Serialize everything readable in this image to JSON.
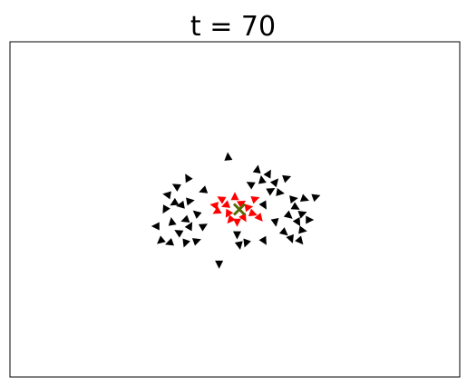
{
  "chart_data": {
    "type": "scatter",
    "title": "t = 70",
    "xlabel": "",
    "ylabel": "",
    "xlim": [
      -10,
      10
    ],
    "ylim": [
      -8,
      8
    ],
    "grid": false,
    "axis_ticks": false,
    "colors": {
      "agents": "#000000",
      "leaders": "#ff0000",
      "center_marker": "#556b00",
      "frame": "#000000",
      "background": "#ffffff"
    },
    "marker": "triangle-arrow",
    "series": [
      {
        "color": "#000000",
        "points": [
          {
            "x": -0.3,
            "y": 2.5,
            "heading": 95
          },
          {
            "x": -2.1,
            "y": 1.5,
            "heading": 120
          },
          {
            "x": -2.6,
            "y": 1.1,
            "heading": 150
          },
          {
            "x": -1.4,
            "y": 0.9,
            "heading": 200
          },
          {
            "x": -3.0,
            "y": 0.7,
            "heading": 170
          },
          {
            "x": -2.7,
            "y": 0.3,
            "heading": 210
          },
          {
            "x": -2.4,
            "y": 0.2,
            "heading": 190
          },
          {
            "x": -2.0,
            "y": 0.4,
            "heading": 10
          },
          {
            "x": -3.1,
            "y": 0.0,
            "heading": 240
          },
          {
            "x": -1.7,
            "y": -0.2,
            "heading": 140
          },
          {
            "x": -2.2,
            "y": -0.5,
            "heading": 200
          },
          {
            "x": -3.5,
            "y": -0.8,
            "heading": 180
          },
          {
            "x": -2.8,
            "y": -0.6,
            "heading": 100
          },
          {
            "x": -2.0,
            "y": -0.8,
            "heading": 60
          },
          {
            "x": -1.4,
            "y": -0.8,
            "heading": 30
          },
          {
            "x": -2.5,
            "y": -1.1,
            "heading": 150
          },
          {
            "x": -3.3,
            "y": -1.5,
            "heading": 220
          },
          {
            "x": -2.9,
            "y": -1.6,
            "heading": 200
          },
          {
            "x": -2.2,
            "y": -1.6,
            "heading": 250
          },
          {
            "x": -1.7,
            "y": -1.5,
            "heading": 20
          },
          {
            "x": -0.7,
            "y": -2.6,
            "heading": 270
          },
          {
            "x": 1.0,
            "y": 1.9,
            "heading": 80
          },
          {
            "x": 1.5,
            "y": 1.7,
            "heading": 60
          },
          {
            "x": 1.2,
            "y": 1.4,
            "heading": 100
          },
          {
            "x": 0.7,
            "y": 1.2,
            "heading": 150
          },
          {
            "x": 1.8,
            "y": 1.3,
            "heading": 50
          },
          {
            "x": 2.3,
            "y": 1.5,
            "heading": 20
          },
          {
            "x": 1.6,
            "y": 0.9,
            "heading": 30
          },
          {
            "x": 2.0,
            "y": 0.8,
            "heading": 350
          },
          {
            "x": 2.6,
            "y": 0.5,
            "heading": 10
          },
          {
            "x": 3.1,
            "y": 0.5,
            "heading": 340
          },
          {
            "x": 3.6,
            "y": 0.6,
            "heading": 20
          },
          {
            "x": 1.3,
            "y": 0.2,
            "heading": 300
          },
          {
            "x": 2.7,
            "y": 0.1,
            "heading": 330
          },
          {
            "x": 3.0,
            "y": -0.2,
            "heading": 20
          },
          {
            "x": 2.4,
            "y": -0.3,
            "heading": 320
          },
          {
            "x": 2.8,
            "y": -0.6,
            "heading": 300
          },
          {
            "x": 3.3,
            "y": -0.5,
            "heading": 0
          },
          {
            "x": 1.8,
            "y": -0.6,
            "heading": 280
          },
          {
            "x": 2.2,
            "y": -1.1,
            "heading": 320
          },
          {
            "x": 3.0,
            "y": -1.0,
            "heading": 350
          },
          {
            "x": 2.5,
            "y": -1.4,
            "heading": 290
          },
          {
            "x": 2.9,
            "y": -1.5,
            "heading": 310
          },
          {
            "x": 1.3,
            "y": -1.5,
            "heading": 300
          },
          {
            "x": 0.1,
            "y": -1.2,
            "heading": 270
          },
          {
            "x": 0.5,
            "y": -1.6,
            "heading": 250
          },
          {
            "x": 0.2,
            "y": -1.7,
            "heading": 280
          }
        ]
      },
      {
        "color": "#ff0000",
        "points": [
          {
            "x": -0.6,
            "y": 0.5,
            "heading": 150
          },
          {
            "x": -0.4,
            "y": 0.2,
            "heading": 200
          },
          {
            "x": -0.8,
            "y": -0.1,
            "heading": 210
          },
          {
            "x": -0.3,
            "y": -0.2,
            "heading": 240
          },
          {
            "x": 0.0,
            "y": 0.6,
            "heading": 90
          },
          {
            "x": 0.3,
            "y": 0.3,
            "heading": 30
          },
          {
            "x": 0.6,
            "y": 0.1,
            "heading": 10
          },
          {
            "x": 0.8,
            "y": -0.2,
            "heading": 340
          },
          {
            "x": 0.4,
            "y": -0.4,
            "heading": 300
          },
          {
            "x": 0.1,
            "y": -0.6,
            "heading": 270
          },
          {
            "x": -0.2,
            "y": -0.5,
            "heading": 230
          },
          {
            "x": 0.9,
            "y": 0.5,
            "heading": 20
          },
          {
            "x": -0.9,
            "y": 0.2,
            "heading": 170
          },
          {
            "x": 1.1,
            "y": -0.4,
            "heading": 310
          }
        ]
      }
    ],
    "center_marker": {
      "x": 0.2,
      "y": 0.0,
      "symbol": "x"
    }
  }
}
